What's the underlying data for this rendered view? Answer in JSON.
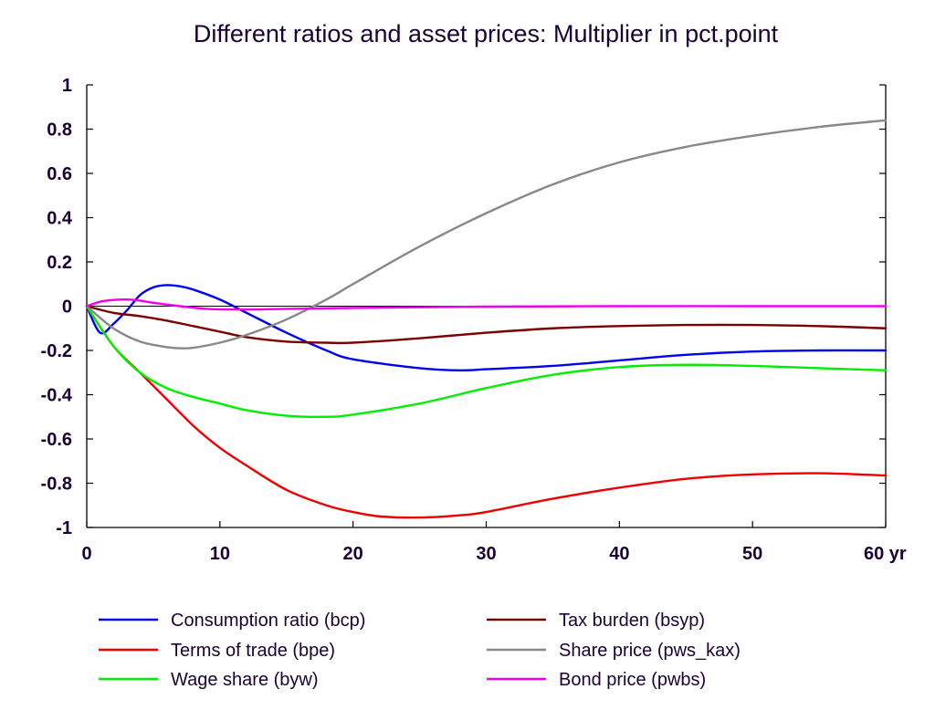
{
  "chart_data": {
    "type": "line",
    "title": "Different ratios and asset prices: Multiplier in pct.point",
    "xlabel": "",
    "ylabel": "",
    "xlim": [
      0,
      60
    ],
    "ylim": [
      -1,
      1
    ],
    "x_ticks": [
      0,
      10,
      20,
      30,
      40,
      50,
      60
    ],
    "x_tick_labels": [
      "0",
      "10",
      "20",
      "30",
      "40",
      "50",
      "60 yr"
    ],
    "y_ticks": [
      1,
      0.8,
      0.6,
      0.4,
      0.2,
      0,
      -0.2,
      -0.4,
      -0.6,
      -0.8,
      -1
    ],
    "y_tick_labels": [
      "1",
      "0.8",
      "0.6",
      "0.4",
      "0.2",
      "0",
      "-0.2",
      "-0.4",
      "-0.6",
      "-0.8",
      "-1"
    ],
    "grid": false,
    "legend_position": "bottom",
    "series": [
      {
        "name": "Consumption ratio (bcp)",
        "color": "#0000ee",
        "x": [
          0,
          1,
          2,
          3,
          4,
          5,
          6,
          7,
          8,
          10,
          12,
          15,
          18,
          20,
          25,
          28,
          30,
          35,
          40,
          45,
          50,
          55,
          60
        ],
        "y": [
          0,
          -0.12,
          -0.08,
          -0.02,
          0.05,
          0.085,
          0.095,
          0.09,
          0.075,
          0.03,
          -0.03,
          -0.12,
          -0.2,
          -0.24,
          -0.28,
          -0.29,
          -0.285,
          -0.27,
          -0.245,
          -0.22,
          -0.205,
          -0.2,
          -0.2
        ]
      },
      {
        "name": "Terms of trade (bpe)",
        "color": "#ee0000",
        "x": [
          0,
          2,
          4,
          6,
          8,
          10,
          12,
          15,
          18,
          20,
          22,
          25,
          28,
          30,
          35,
          40,
          45,
          50,
          55,
          60
        ],
        "y": [
          0,
          -0.18,
          -0.3,
          -0.42,
          -0.54,
          -0.64,
          -0.72,
          -0.83,
          -0.9,
          -0.93,
          -0.95,
          -0.955,
          -0.945,
          -0.93,
          -0.87,
          -0.82,
          -0.78,
          -0.76,
          -0.755,
          -0.765
        ]
      },
      {
        "name": "Wage share (byw)",
        "color": "#00ee00",
        "x": [
          0,
          2,
          4,
          6,
          8,
          10,
          12,
          15,
          18,
          20,
          25,
          30,
          35,
          40,
          45,
          50,
          55,
          60
        ],
        "y": [
          0,
          -0.18,
          -0.3,
          -0.37,
          -0.41,
          -0.44,
          -0.47,
          -0.495,
          -0.5,
          -0.49,
          -0.44,
          -0.37,
          -0.31,
          -0.275,
          -0.265,
          -0.27,
          -0.28,
          -0.29
        ]
      },
      {
        "name": "Tax burden (bsyp)",
        "color": "#7a0000",
        "x": [
          0,
          2,
          4,
          6,
          8,
          10,
          12,
          15,
          18,
          20,
          25,
          30,
          35,
          40,
          45,
          50,
          55,
          60
        ],
        "y": [
          0,
          -0.03,
          -0.045,
          -0.065,
          -0.09,
          -0.115,
          -0.14,
          -0.16,
          -0.165,
          -0.165,
          -0.145,
          -0.12,
          -0.1,
          -0.09,
          -0.085,
          -0.085,
          -0.09,
          -0.1
        ]
      },
      {
        "name": "Share price (pws_kax)",
        "color": "#888888",
        "x": [
          0,
          2,
          4,
          6,
          7,
          8,
          10,
          12,
          15,
          18,
          20,
          25,
          30,
          35,
          40,
          45,
          50,
          55,
          60
        ],
        "y": [
          0,
          -0.1,
          -0.16,
          -0.185,
          -0.19,
          -0.188,
          -0.165,
          -0.13,
          -0.06,
          0.03,
          0.1,
          0.27,
          0.42,
          0.55,
          0.65,
          0.72,
          0.77,
          0.81,
          0.84
        ]
      },
      {
        "name": "Bond price (pwbs)",
        "color": "#ee00ee",
        "x": [
          0,
          1,
          2,
          3,
          4,
          5,
          7,
          9,
          12,
          15,
          20,
          25,
          30,
          40,
          50,
          60
        ],
        "y": [
          0,
          0.02,
          0.028,
          0.03,
          0.025,
          0.015,
          0,
          -0.012,
          -0.015,
          -0.012,
          -0.008,
          -0.005,
          -0.002,
          0,
          0,
          0
        ]
      }
    ]
  }
}
